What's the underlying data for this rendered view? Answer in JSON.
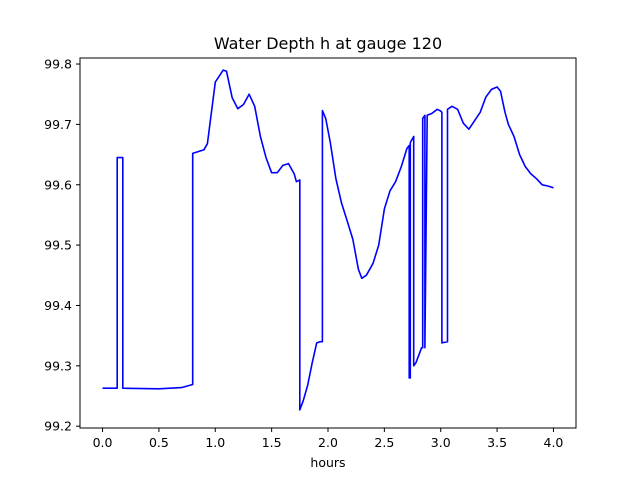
{
  "chart_data": {
    "type": "line",
    "title": "Water Depth h at gauge 120",
    "xlabel": "hours",
    "ylabel": "",
    "xlim": [
      -0.2,
      4.2
    ],
    "ylim": [
      99.197,
      99.81
    ],
    "xticks": [
      0.0,
      0.5,
      1.0,
      1.5,
      2.0,
      2.5,
      3.0,
      3.5,
      4.0
    ],
    "xtick_labels": [
      "0.0",
      "0.5",
      "1.0",
      "1.5",
      "2.0",
      "2.5",
      "3.0",
      "3.5",
      "4.0"
    ],
    "yticks": [
      99.2,
      99.3,
      99.4,
      99.5,
      99.6,
      99.7,
      99.8
    ],
    "ytick_labels": [
      "99.2",
      "99.3",
      "99.4",
      "99.5",
      "99.6",
      "99.7",
      "99.8"
    ],
    "grid": false,
    "series": [
      {
        "color": "#0000ff",
        "x": [
          0.0,
          0.13,
          0.13,
          0.18,
          0.18,
          0.5,
          0.7,
          0.8,
          0.8,
          0.9,
          0.93,
          1.0,
          1.07,
          1.1,
          1.15,
          1.2,
          1.25,
          1.3,
          1.35,
          1.4,
          1.45,
          1.5,
          1.55,
          1.6,
          1.65,
          1.7,
          1.72,
          1.75,
          1.75,
          1.78,
          1.82,
          1.86,
          1.9,
          1.93,
          1.95,
          1.95,
          1.98,
          2.02,
          2.07,
          2.12,
          2.17,
          2.22,
          2.27,
          2.3,
          2.34,
          2.37,
          2.4,
          2.45,
          2.5,
          2.55,
          2.6,
          2.65,
          2.7,
          2.72,
          2.72,
          2.73,
          2.73,
          2.76,
          2.76,
          2.78,
          2.83,
          2.84,
          2.84,
          2.86,
          2.86,
          2.88,
          2.92,
          2.97,
          3.0,
          3.01,
          3.01,
          3.06,
          3.06,
          3.1,
          3.15,
          3.2,
          3.25,
          3.3,
          3.35,
          3.4,
          3.45,
          3.5,
          3.53,
          3.57,
          3.6,
          3.65,
          3.7,
          3.75,
          3.8,
          3.85,
          3.9,
          3.95,
          4.0
        ],
        "y": [
          99.263,
          99.263,
          99.645,
          99.645,
          99.263,
          99.262,
          99.264,
          99.269,
          99.652,
          99.658,
          99.668,
          99.77,
          99.79,
          99.788,
          99.744,
          99.726,
          99.733,
          99.75,
          99.73,
          99.68,
          99.645,
          99.62,
          99.62,
          99.632,
          99.635,
          99.618,
          99.605,
          99.608,
          99.227,
          99.242,
          99.268,
          99.305,
          99.338,
          99.34,
          99.34,
          99.723,
          99.71,
          99.67,
          99.61,
          99.57,
          99.54,
          99.51,
          99.46,
          99.445,
          99.45,
          99.46,
          99.47,
          99.5,
          99.56,
          99.59,
          99.605,
          99.63,
          99.66,
          99.665,
          99.28,
          99.28,
          99.67,
          99.68,
          99.3,
          99.305,
          99.33,
          99.33,
          99.71,
          99.715,
          99.33,
          99.715,
          99.718,
          99.725,
          99.722,
          99.72,
          99.338,
          99.34,
          99.725,
          99.73,
          99.725,
          99.702,
          99.692,
          99.706,
          99.72,
          99.745,
          99.758,
          99.762,
          99.755,
          99.72,
          99.7,
          99.68,
          99.65,
          99.63,
          99.618,
          99.61,
          99.6,
          99.598,
          99.595
        ]
      }
    ]
  }
}
